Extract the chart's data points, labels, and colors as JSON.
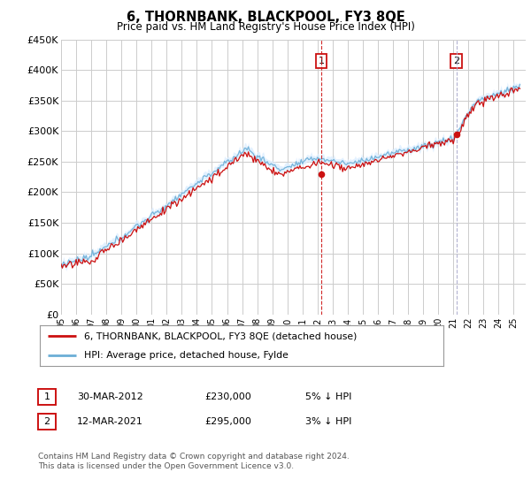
{
  "title": "6, THORNBANK, BLACKPOOL, FY3 8QE",
  "subtitle": "Price paid vs. HM Land Registry's House Price Index (HPI)",
  "ylabel_ticks": [
    "£0",
    "£50K",
    "£100K",
    "£150K",
    "£200K",
    "£250K",
    "£300K",
    "£350K",
    "£400K",
    "£450K"
  ],
  "ylim": [
    0,
    450000
  ],
  "xlim_start": 1995.0,
  "xlim_end": 2025.8,
  "hpi_color": "#6baed6",
  "price_color": "#cc1111",
  "transaction1": {
    "date": "30-MAR-2012",
    "price": 230000,
    "label": "1",
    "year": 2012.25
  },
  "transaction2": {
    "date": "12-MAR-2021",
    "price": 295000,
    "label": "2",
    "year": 2021.2
  },
  "legend_entry1": "6, THORNBANK, BLACKPOOL, FY3 8QE (detached house)",
  "legend_entry2": "HPI: Average price, detached house, Fylde",
  "footer": "Contains HM Land Registry data © Crown copyright and database right 2024.\nThis data is licensed under the Open Government Licence v3.0.",
  "table_row1": [
    "1",
    "30-MAR-2012",
    "£230,000",
    "5% ↓ HPI"
  ],
  "table_row2": [
    "2",
    "12-MAR-2021",
    "£295,000",
    "3% ↓ HPI"
  ],
  "background_color": "#ffffff",
  "plot_bg_color": "#ffffff",
  "grid_color": "#cccccc",
  "shade_color": "#ddeeff"
}
